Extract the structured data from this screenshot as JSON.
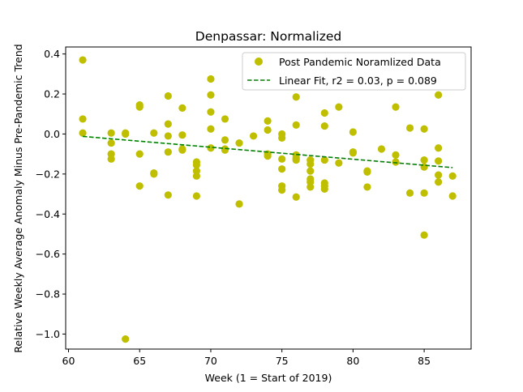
{
  "chart_data": {
    "type": "scatter",
    "title": "Denpassar: Normalized",
    "xlabel": "Week (1 = Start of 2019)",
    "ylabel": "Relative Weekly Average Anomaly Minus Pre-Pandemic Trend",
    "xlim": [
      59.8,
      88.3
    ],
    "ylim": [
      -1.075,
      0.435
    ],
    "xticks": [
      60,
      65,
      70,
      75,
      80,
      85
    ],
    "yticks": [
      -1.0,
      -0.8,
      -0.6,
      -0.4,
      -0.2,
      0.0,
      0.2,
      0.4
    ],
    "grid": false,
    "legend_position": "top-right",
    "colors": {
      "scatter": "#bfbf00",
      "fit": "#008000"
    },
    "series": [
      {
        "name": "Post Pandemic Noramlized Data",
        "kind": "scatter",
        "points": [
          [
            61,
            0.37
          ],
          [
            61,
            0.075
          ],
          [
            61,
            0.005
          ],
          [
            63,
            0.005
          ],
          [
            63,
            -0.045
          ],
          [
            63,
            -0.1
          ],
          [
            63,
            -0.125
          ],
          [
            64,
            0.0
          ],
          [
            64,
            0.005
          ],
          [
            64,
            -1.025
          ],
          [
            65,
            0.145
          ],
          [
            65,
            0.135
          ],
          [
            65,
            -0.1
          ],
          [
            65,
            -0.26
          ],
          [
            66,
            0.005
          ],
          [
            66,
            -0.195
          ],
          [
            66,
            -0.2
          ],
          [
            67,
            0.19
          ],
          [
            67,
            0.05
          ],
          [
            67,
            -0.01
          ],
          [
            67,
            -0.09
          ],
          [
            67,
            -0.305
          ],
          [
            68,
            0.13
          ],
          [
            68,
            -0.005
          ],
          [
            68,
            -0.075
          ],
          [
            68,
            -0.08
          ],
          [
            69,
            -0.14
          ],
          [
            69,
            -0.155
          ],
          [
            69,
            -0.185
          ],
          [
            69,
            -0.21
          ],
          [
            69,
            -0.31
          ],
          [
            70,
            0.275
          ],
          [
            70,
            0.195
          ],
          [
            70,
            0.11
          ],
          [
            70,
            0.025
          ],
          [
            70,
            -0.07
          ],
          [
            71,
            0.075
          ],
          [
            71,
            -0.03
          ],
          [
            71,
            -0.075
          ],
          [
            71,
            -0.08
          ],
          [
            72,
            -0.045
          ],
          [
            72,
            -0.35
          ],
          [
            73,
            -0.01
          ],
          [
            74,
            0.065
          ],
          [
            74,
            0.02
          ],
          [
            74,
            -0.1
          ],
          [
            74,
            -0.11
          ],
          [
            75,
            0.0
          ],
          [
            75,
            -0.02
          ],
          [
            75,
            -0.125
          ],
          [
            75,
            -0.175
          ],
          [
            75,
            -0.26
          ],
          [
            75,
            -0.28
          ],
          [
            76,
            0.185
          ],
          [
            76,
            0.045
          ],
          [
            76,
            -0.105
          ],
          [
            76,
            -0.12
          ],
          [
            76,
            -0.13
          ],
          [
            76,
            -0.315
          ],
          [
            77,
            -0.13
          ],
          [
            77,
            -0.15
          ],
          [
            77,
            -0.185
          ],
          [
            77,
            -0.225
          ],
          [
            77,
            -0.24
          ],
          [
            77,
            -0.265
          ],
          [
            78,
            0.105
          ],
          [
            78,
            0.04
          ],
          [
            78,
            -0.13
          ],
          [
            78,
            -0.245
          ],
          [
            78,
            -0.26
          ],
          [
            78,
            -0.275
          ],
          [
            79,
            0.135
          ],
          [
            79,
            -0.145
          ],
          [
            80,
            0.01
          ],
          [
            80,
            -0.09
          ],
          [
            80,
            -0.095
          ],
          [
            81,
            -0.185
          ],
          [
            81,
            -0.19
          ],
          [
            81,
            -0.265
          ],
          [
            82,
            -0.075
          ],
          [
            83,
            0.135
          ],
          [
            83,
            -0.105
          ],
          [
            83,
            -0.14
          ],
          [
            84,
            0.03
          ],
          [
            84,
            -0.295
          ],
          [
            85,
            0.025
          ],
          [
            85,
            -0.13
          ],
          [
            85,
            -0.165
          ],
          [
            85,
            -0.295
          ],
          [
            85,
            -0.505
          ],
          [
            86,
            0.195
          ],
          [
            86,
            -0.07
          ],
          [
            86,
            -0.135
          ],
          [
            86,
            -0.205
          ],
          [
            86,
            -0.24
          ],
          [
            87,
            -0.21
          ],
          [
            87,
            -0.31
          ]
        ]
      },
      {
        "name": "Linear Fit, r2 = 0.03, p = 0.089",
        "kind": "line",
        "style": "dashed",
        "x": [
          61,
          87
        ],
        "y": [
          -0.012,
          -0.168
        ]
      }
    ]
  }
}
